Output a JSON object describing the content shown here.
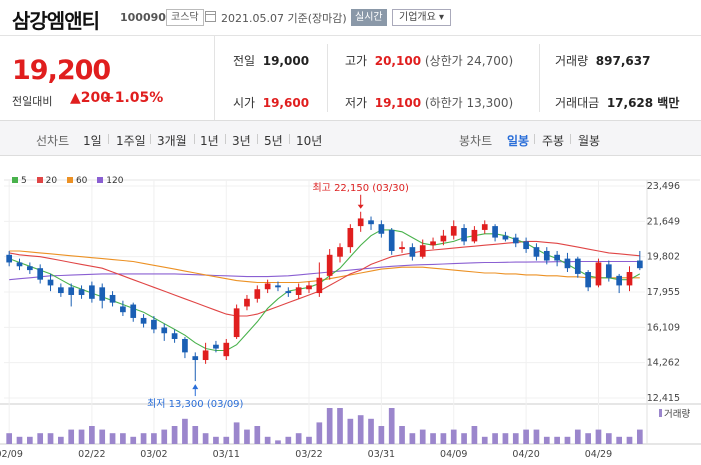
{
  "header": {
    "name": "삼강엠앤티",
    "code": "100090",
    "market": "코스닥",
    "date": "2021.05.07 기준(장마감)",
    "realtime": "실시간",
    "company_info": "기업개요 ▾"
  },
  "price": {
    "current": "19,200",
    "change_label": "전일대비",
    "change_amount": "▲200",
    "change_pct": "+1.05%"
  },
  "stats": {
    "prev_label": "전일",
    "prev": "19,000",
    "high_label": "고가",
    "high": "20,100",
    "high_limit": "(상한가 24,700)",
    "volume_label": "거래량",
    "volume": "897,637",
    "open_label": "시가",
    "open": "19,600",
    "low_label": "저가",
    "low": "19,100",
    "low_limit": "(하한가 13,300)",
    "amount_label": "거래대금",
    "amount": "17,628 백만"
  },
  "toolbar": {
    "line_chart": "선차트",
    "p1d": "1일",
    "p1w": "1주일",
    "p3m": "3개월",
    "p1y": "1년",
    "p3y": "3년",
    "p5y": "5년",
    "p10y": "10년",
    "candle_chart": "봉차트",
    "daily": "일봉",
    "weekly": "주봉",
    "monthly": "월봉"
  },
  "colors": {
    "up": "#e01e1e",
    "down": "#1a5fb4",
    "ma5": "#49b24c",
    "ma20": "#e04545",
    "ma60": "#ec9124",
    "ma120": "#8a5fd2",
    "volume": "#9b86cc"
  },
  "chart_data": {
    "type": "candlestick",
    "legend": [
      "5",
      "20",
      "60",
      "120"
    ],
    "y_ticks": [
      "23,496",
      "21,649",
      "19,802",
      "17,955",
      "16,109",
      "14,262",
      "12,415"
    ],
    "y_range": [
      12415,
      23496
    ],
    "x_ticks": [
      {
        "label": "02/09",
        "index": 0
      },
      {
        "label": "02/22",
        "index": 8
      },
      {
        "label": "03/02",
        "index": 14
      },
      {
        "label": "03/11",
        "index": 21
      },
      {
        "label": "03/22",
        "index": 29
      },
      {
        "label": "03/31",
        "index": 36
      },
      {
        "label": "04/09",
        "index": 43
      },
      {
        "label": "04/20",
        "index": 50
      },
      {
        "label": "04/29",
        "index": 57
      }
    ],
    "high_annotation": {
      "text": "최고 22,150 (03/30)",
      "index": 34,
      "value": 22150
    },
    "low_annotation": {
      "text": "최저 13,300 (03/09)",
      "index": 18,
      "value": 13300
    },
    "volume_label": "거래량",
    "candles": [
      {
        "o": 19900,
        "c": 19500,
        "h": 20100,
        "l": 19300
      },
      {
        "o": 19500,
        "c": 19300,
        "h": 19700,
        "l": 19100
      },
      {
        "o": 19300,
        "c": 19100,
        "h": 19500,
        "l": 18900
      },
      {
        "o": 19200,
        "c": 18600,
        "h": 19400,
        "l": 18400
      },
      {
        "o": 18600,
        "c": 18300,
        "h": 18900,
        "l": 18000
      },
      {
        "o": 18200,
        "c": 17900,
        "h": 18400,
        "l": 17700
      },
      {
        "o": 18200,
        "c": 17800,
        "h": 18400,
        "l": 17200
      },
      {
        "o": 18100,
        "c": 17800,
        "h": 18300,
        "l": 17600
      },
      {
        "o": 18300,
        "c": 17600,
        "h": 18500,
        "l": 17400
      },
      {
        "o": 18200,
        "c": 17500,
        "h": 18400,
        "l": 17100
      },
      {
        "o": 17800,
        "c": 17400,
        "h": 18000,
        "l": 17200
      },
      {
        "o": 17200,
        "c": 16900,
        "h": 17500,
        "l": 16700
      },
      {
        "o": 17300,
        "c": 16600,
        "h": 17400,
        "l": 16400
      },
      {
        "o": 16600,
        "c": 16300,
        "h": 16800,
        "l": 16100
      },
      {
        "o": 16500,
        "c": 16000,
        "h": 16700,
        "l": 15800
      },
      {
        "o": 16100,
        "c": 15800,
        "h": 16300,
        "l": 15400
      },
      {
        "o": 15800,
        "c": 15500,
        "h": 16000,
        "l": 15300
      },
      {
        "o": 15500,
        "c": 14800,
        "h": 15600,
        "l": 14500
      },
      {
        "o": 14600,
        "c": 14400,
        "h": 14800,
        "l": 13300
      },
      {
        "o": 14400,
        "c": 14900,
        "h": 15300,
        "l": 14200
      },
      {
        "o": 15200,
        "c": 15000,
        "h": 15400,
        "l": 14800
      },
      {
        "o": 14600,
        "c": 15300,
        "h": 15500,
        "l": 14400
      },
      {
        "o": 15600,
        "c": 17100,
        "h": 17300,
        "l": 15500
      },
      {
        "o": 17200,
        "c": 17600,
        "h": 17800,
        "l": 17000
      },
      {
        "o": 17600,
        "c": 18100,
        "h": 18300,
        "l": 17400
      },
      {
        "o": 18100,
        "c": 18400,
        "h": 18600,
        "l": 17900
      },
      {
        "o": 18300,
        "c": 18200,
        "h": 18500,
        "l": 18000
      },
      {
        "o": 18000,
        "c": 17900,
        "h": 18200,
        "l": 17700
      },
      {
        "o": 17800,
        "c": 18200,
        "h": 18400,
        "l": 17600
      },
      {
        "o": 18100,
        "c": 18300,
        "h": 18500,
        "l": 17900
      },
      {
        "o": 17900,
        "c": 18700,
        "h": 19500,
        "l": 17700
      },
      {
        "o": 18800,
        "c": 19900,
        "h": 20200,
        "l": 18600
      },
      {
        "o": 19800,
        "c": 20300,
        "h": 20500,
        "l": 19500
      },
      {
        "o": 20300,
        "c": 21300,
        "h": 21500,
        "l": 20000
      },
      {
        "o": 21400,
        "c": 21800,
        "h": 22150,
        "l": 21100
      },
      {
        "o": 21700,
        "c": 21500,
        "h": 21900,
        "l": 21200
      },
      {
        "o": 21500,
        "c": 21000,
        "h": 21700,
        "l": 20800
      },
      {
        "o": 21200,
        "c": 20100,
        "h": 21300,
        "l": 19900
      },
      {
        "o": 20200,
        "c": 20300,
        "h": 20600,
        "l": 20000
      },
      {
        "o": 20300,
        "c": 19800,
        "h": 20500,
        "l": 19600
      },
      {
        "o": 19800,
        "c": 20400,
        "h": 20700,
        "l": 19700
      },
      {
        "o": 20400,
        "c": 20600,
        "h": 20800,
        "l": 20200
      },
      {
        "o": 20600,
        "c": 20900,
        "h": 21200,
        "l": 20400
      },
      {
        "o": 20900,
        "c": 21400,
        "h": 21700,
        "l": 20700
      },
      {
        "o": 21300,
        "c": 20600,
        "h": 21500,
        "l": 20400
      },
      {
        "o": 20600,
        "c": 21200,
        "h": 21400,
        "l": 20500
      },
      {
        "o": 21200,
        "c": 21500,
        "h": 21700,
        "l": 21000
      },
      {
        "o": 21400,
        "c": 20800,
        "h": 21500,
        "l": 20600
      },
      {
        "o": 20900,
        "c": 20700,
        "h": 21100,
        "l": 20600
      },
      {
        "o": 20800,
        "c": 20500,
        "h": 21000,
        "l": 20300
      },
      {
        "o": 20600,
        "c": 20200,
        "h": 20800,
        "l": 20000
      },
      {
        "o": 20300,
        "c": 19800,
        "h": 20500,
        "l": 19600
      },
      {
        "o": 20100,
        "c": 19600,
        "h": 20300,
        "l": 19400
      },
      {
        "o": 19900,
        "c": 19600,
        "h": 20100,
        "l": 19300
      },
      {
        "o": 19700,
        "c": 19200,
        "h": 20000,
        "l": 19000
      },
      {
        "o": 19700,
        "c": 18900,
        "h": 19800,
        "l": 18700
      },
      {
        "o": 19000,
        "c": 18200,
        "h": 19100,
        "l": 18000
      },
      {
        "o": 18300,
        "c": 19500,
        "h": 19700,
        "l": 18200
      },
      {
        "o": 19400,
        "c": 18700,
        "h": 19600,
        "l": 18500
      },
      {
        "o": 18800,
        "c": 18300,
        "h": 18900,
        "l": 17900
      },
      {
        "o": 18300,
        "c": 19000,
        "h": 19300,
        "l": 18000
      },
      {
        "o": 19600,
        "c": 19200,
        "h": 20100,
        "l": 19100
      }
    ],
    "volumes": [
      3,
      2,
      2,
      3,
      3,
      2,
      4,
      4,
      5,
      4,
      3,
      3,
      2,
      3,
      3,
      4,
      5,
      7,
      5,
      3,
      2,
      2,
      6,
      4,
      5,
      2,
      1,
      2,
      3,
      2,
      6,
      10,
      10,
      7,
      8,
      7,
      5,
      10,
      5,
      3,
      4,
      3,
      3,
      4,
      3,
      5,
      2,
      3,
      3,
      3,
      4,
      4,
      2,
      2,
      2,
      4,
      3,
      4,
      3,
      2,
      2,
      4
    ],
    "ma5": [
      19700,
      19500,
      19300,
      19100,
      18900,
      18600,
      18300,
      18100,
      17900,
      17700,
      17500,
      17300,
      17100,
      16900,
      16600,
      16300,
      16000,
      15700,
      15300,
      15000,
      14900,
      14900,
      15200,
      15800,
      16400,
      17100,
      17600,
      18000,
      18100,
      18200,
      18400,
      18800,
      19200,
      19800,
      20400,
      20900,
      21200,
      21200,
      21100,
      20800,
      20500,
      20400,
      20500,
      20600,
      20800,
      20900,
      21000,
      21000,
      20900,
      20700,
      20500,
      20200,
      19900,
      19700,
      19400,
      19100,
      18800,
      18700,
      18700,
      18600,
      18600,
      18900
    ],
    "ma20": [
      20000,
      19900,
      19850,
      19800,
      19700,
      19600,
      19500,
      19400,
      19300,
      19200,
      19000,
      18800,
      18600,
      18400,
      18200,
      18000,
      17800,
      17600,
      17400,
      17200,
      17000,
      16800,
      16700,
      16700,
      16800,
      17000,
      17200,
      17400,
      17600,
      17800,
      18000,
      18300,
      18600,
      18900,
      19100,
      19400,
      19600,
      19800,
      19900,
      20000,
      20100,
      20150,
      20200,
      20250,
      20300,
      20350,
      20400,
      20450,
      20500,
      20550,
      20600,
      20600,
      20550,
      20500,
      20400,
      20300,
      20200,
      20100,
      20000,
      19950,
      19900,
      19850
    ],
    "ma60": [
      20100,
      20100,
      20050,
      20000,
      19950,
      19900,
      19850,
      19800,
      19750,
      19700,
      19650,
      19600,
      19550,
      19450,
      19350,
      19250,
      19150,
      19050,
      18950,
      18850,
      18750,
      18650,
      18550,
      18500,
      18450,
      18450,
      18450,
      18450,
      18450,
      18500,
      18550,
      18650,
      18750,
      18850,
      18950,
      19050,
      19150,
      19200,
      19250,
      19250,
      19250,
      19200,
      19150,
      19100,
      19050,
      19000,
      18950,
      18950,
      18900,
      18900,
      18850,
      18850,
      18800,
      18800,
      18750,
      18750,
      18700,
      18700,
      18700,
      18700,
      18700,
      18700
    ],
    "ma120": [
      18600,
      18650,
      18700,
      18750,
      18800,
      18820,
      18840,
      18860,
      18880,
      18900,
      18900,
      18900,
      18900,
      18900,
      18900,
      18900,
      18900,
      18880,
      18860,
      18840,
      18820,
      18800,
      18780,
      18760,
      18760,
      18760,
      18780,
      18800,
      18850,
      18900,
      18950,
      19000,
      19050,
      19100,
      19150,
      19200,
      19250,
      19300,
      19330,
      19360,
      19380,
      19400,
      19420,
      19440,
      19460,
      19480,
      19500,
      19500,
      19510,
      19520,
      19520,
      19530,
      19530,
      19540,
      19540,
      19550,
      19550,
      19550,
      19550,
      19550,
      19550,
      19550
    ]
  }
}
